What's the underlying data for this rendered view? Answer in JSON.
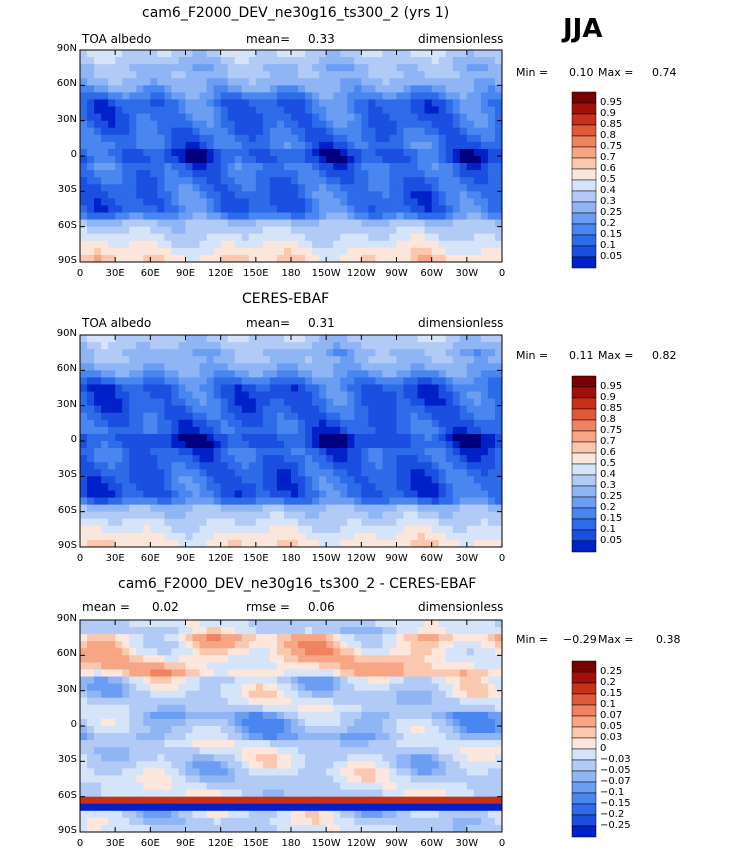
{
  "season_label": "JJA",
  "colors": {
    "albedo_scale": [
      "#00007f",
      "#0020c8",
      "#1a4fe0",
      "#2e6be8",
      "#4a86ef",
      "#6b9ef2",
      "#8fb5f4",
      "#b2cbf6",
      "#d6e4fa",
      "#fae6da",
      "#fac8ae",
      "#f6a684",
      "#ef8260",
      "#e05a3a",
      "#c83018",
      "#a01008",
      "#780000"
    ],
    "diff_scale": [
      "#00007f",
      "#0020c8",
      "#1a4fe0",
      "#2e6be8",
      "#4a86ef",
      "#6b9ef2",
      "#8fb5f4",
      "#b2cbf6",
      "#d6e4fa",
      "#fde7dc",
      "#fac8ae",
      "#f6a684",
      "#ef8260",
      "#e05a3a",
      "#c83018",
      "#a01008",
      "#780000"
    ]
  },
  "chart_data": [
    {
      "type": "heatmap",
      "title": "cam6_F2000_DEV_ne30g16_ts300_2 (yrs 1)",
      "left_label": "TOA albedo",
      "mean_label": "mean=",
      "mean_value": "0.33",
      "units": "dimensionless",
      "min_label": "Min =",
      "min_value": "0.10",
      "max_label": "Max =",
      "max_value": "0.74",
      "colorbar_labels": [
        "0.95",
        "0.9",
        "0.85",
        "0.8",
        "0.75",
        "0.7",
        "0.6",
        "0.5",
        "0.4",
        "0.3",
        "0.25",
        "0.2",
        "0.15",
        "0.1",
        "0.05"
      ],
      "xticks": [
        "0",
        "30E",
        "60E",
        "90E",
        "120E",
        "150E",
        "180",
        "150W",
        "120W",
        "90W",
        "60W",
        "30W",
        "0"
      ],
      "yticks": [
        "90N",
        "60N",
        "30N",
        "0",
        "30S",
        "60S",
        "90S"
      ]
    },
    {
      "type": "heatmap",
      "title": "CERES-EBAF",
      "left_label": "TOA albedo",
      "mean_label": "mean=",
      "mean_value": "0.31",
      "units": "dimensionless",
      "min_label": "Min =",
      "min_value": "0.11",
      "max_label": "Max =",
      "max_value": "0.82",
      "colorbar_labels": [
        "0.95",
        "0.9",
        "0.85",
        "0.8",
        "0.75",
        "0.7",
        "0.6",
        "0.5",
        "0.4",
        "0.3",
        "0.25",
        "0.2",
        "0.15",
        "0.1",
        "0.05"
      ],
      "xticks": [
        "0",
        "30E",
        "60E",
        "90E",
        "120E",
        "150E",
        "180",
        "150W",
        "120W",
        "90W",
        "60W",
        "30W",
        "0"
      ],
      "yticks": [
        "90N",
        "60N",
        "30N",
        "0",
        "30S",
        "60S",
        "90S"
      ]
    },
    {
      "type": "heatmap",
      "title": "cam6_F2000_DEV_ne30g16_ts300_2 - CERES-EBAF",
      "left_label": "mean =",
      "mean_label": "rmse =",
      "mean_value": "0.06",
      "left_value": "0.02",
      "units": "dimensionless",
      "min_label": "Min =",
      "min_value": "−0.29",
      "max_label": "Max =",
      "max_value": "0.38",
      "colorbar_labels": [
        "0.25",
        "0.2",
        "0.15",
        "0.1",
        "0.07",
        "0.05",
        "0.03",
        "0",
        "−0.03",
        "−0.05",
        "−0.07",
        "−0.1",
        "−0.15",
        "−0.2",
        "−0.25"
      ],
      "xticks": [
        "0",
        "30E",
        "60E",
        "90E",
        "120E",
        "150E",
        "180",
        "150W",
        "120W",
        "90W",
        "60W",
        "30W",
        "0"
      ],
      "yticks": [
        "90N",
        "60N",
        "30N",
        "0",
        "30S",
        "60S",
        "90S"
      ]
    }
  ]
}
